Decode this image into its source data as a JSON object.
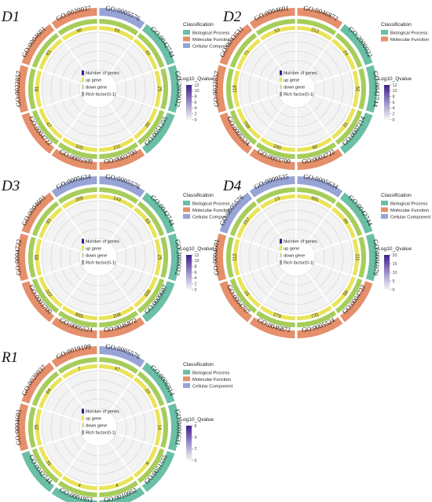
{
  "colors": {
    "bp": "#6abfa6",
    "mf": "#e58f6b",
    "cc": "#98a4d6",
    "count_ring": "#a6cd5a",
    "up_ring": "#e9e35a",
    "grid": "#dcdcdc",
    "qvalue_low": "#f6f6f6",
    "qvalue_high": "#3f1e8a"
  },
  "legend": {
    "classification_title": "Classification",
    "bp": "Biological Process",
    "mf": "Molecular Function",
    "cc": "Cellular Component",
    "qvalue_title": "-Log10_Qvalue"
  },
  "inner_legend": {
    "n_genes": "Number of genes",
    "up": "up gene",
    "down": "down gene",
    "rich": "Rich factor(0-1)"
  },
  "chart_data": [
    {
      "type": "circular-go-enrichment",
      "panel": "D1",
      "categories": [
        "GO:0005576",
        "GO:0042744",
        "GO:2000022",
        "GO:0051255",
        "GO:0003700",
        "GO:0005509",
        "GO:0004722",
        "GO:0022857",
        "GO:0004601",
        "GO:0020037"
      ],
      "classes": [
        "cc",
        "bp",
        "bp",
        "bp",
        "mf",
        "mf",
        "mf",
        "mf",
        "mf",
        "mf"
      ],
      "counts": [
        65,
        40,
        25,
        20,
        211,
        102,
        47,
        81,
        63,
        90
      ],
      "show_cc_legend": true,
      "qvalue_ticks": [
        "12",
        "10",
        "8",
        "6",
        "4",
        "2",
        "0"
      ]
    },
    {
      "type": "circular-go-enrichment",
      "panel": "D2",
      "categories": [
        "GO:0046872",
        "GO:2000022",
        "GO:0042744",
        "GO:0007214",
        "GO:0004722",
        "GO:0003700",
        "GO:0005524",
        "GO:0022857",
        "GO:0043531",
        "GO:0004601"
      ],
      "classes": [
        "mf",
        "bp",
        "bp",
        "bp",
        "mf",
        "mf",
        "mf",
        "mf",
        "mf",
        "mf"
      ],
      "counts": [
        213,
        24,
        52,
        21,
        60,
        290,
        758,
        118,
        71,
        53
      ],
      "show_cc_legend": false,
      "qvalue_ticks": [
        "12",
        "10",
        "8",
        "6",
        "4",
        "2",
        "0"
      ]
    },
    {
      "type": "circular-go-enrichment",
      "panel": "D3",
      "categories": [
        "GO:0005576",
        "GO:0042744",
        "GO:2000022",
        "GO:0009607",
        "GO:0046872",
        "GO:0005524",
        "GO:0003700",
        "GO:0004722",
        "GO:0004601",
        "GO:0005634"
      ],
      "classes": [
        "cc",
        "bp",
        "bp",
        "bp",
        "mf",
        "mf",
        "mf",
        "mf",
        "mf",
        "cc"
      ],
      "counts": [
        143,
        83,
        25,
        105,
        208,
        893,
        222,
        65,
        93,
        208
      ],
      "show_cc_legend": true,
      "qvalue_ticks": [
        "12",
        "10",
        "8",
        "6",
        "4",
        "2",
        "0"
      ]
    },
    {
      "type": "circular-go-enrichment",
      "panel": "D4",
      "categories": [
        "GO:0005634",
        "GO:0042744",
        "GO:0006979",
        "GO:0004722",
        "GO:0005524",
        "GO:0046872",
        "GO:0004707",
        "GO:0004601",
        "GO:0005576",
        "GO:0009535"
      ],
      "classes": [
        "cc",
        "bp",
        "bp",
        "mf",
        "mf",
        "mf",
        "mf",
        "mf",
        "cc",
        "cc"
      ],
      "counts": [
        691,
        99,
        111,
        59,
        731,
        279,
        15,
        112,
        157,
        13
      ],
      "show_cc_legend": true,
      "qvalue_ticks": [
        "20",
        "15",
        "10",
        "5",
        "0"
      ]
    },
    {
      "type": "circular-go-enrichment",
      "panel": "R1",
      "categories": [
        "GO:0005576",
        "GO:0006914",
        "GO:0006631",
        "GO:0051555",
        "GO:0010952",
        "GO:0001953",
        "GO:0042744",
        "GO:0004601",
        "GO:0020037",
        "GO:0019199"
      ],
      "classes": [
        "cc",
        "bp",
        "bp",
        "bp",
        "bp",
        "bp",
        "bp",
        "mf",
        "mf",
        "mf"
      ],
      "counts": [
        47,
        20,
        14,
        6,
        4,
        4,
        31,
        25,
        64,
        7
      ],
      "show_cc_legend": true,
      "qvalue_ticks": [
        "6",
        "4",
        "2",
        "0"
      ]
    }
  ]
}
